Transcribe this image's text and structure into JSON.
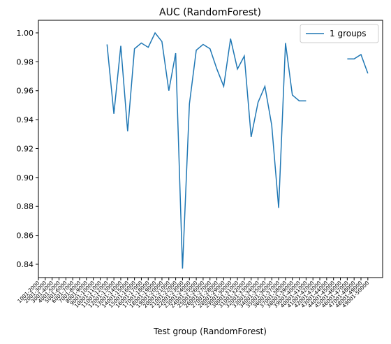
{
  "chart_data": {
    "type": "line",
    "title": "AUC (RandomForest)",
    "x_label": "Test group (RandomForest)",
    "categories": [
      "1001-2000",
      "2001-3000",
      "3001-4000",
      "4001-5000",
      "5001-6000",
      "6001-7000",
      "7001-8000",
      "8001-9000",
      "9001-10000",
      "10001-11000",
      "11001-12000",
      "12001-13000",
      "13001-14000",
      "14001-15000",
      "15001-16000",
      "16001-17000",
      "17001-18000",
      "18001-19000",
      "19001-20000",
      "20001-21000",
      "21001-22000",
      "22001-23000",
      "23001-24000",
      "24001-25000",
      "25001-26000",
      "26001-27000",
      "27001-28000",
      "28001-29000",
      "29001-30000",
      "30001-31000",
      "31001-32000",
      "32001-33000",
      "33001-34000",
      "34001-35000",
      "35001-36000",
      "36001-37000",
      "37001-38000",
      "38001-39000",
      "39001-40000",
      "40001-41000",
      "41001-42000",
      "42001-43000",
      "43001-44000",
      "44001-45000",
      "45001-46000",
      "46001-47000",
      "47001-48000",
      "48001-49000",
      "49001-50000"
    ],
    "series": [
      {
        "name": "1 groups",
        "color": "#1f77b4",
        "values": [
          null,
          null,
          null,
          null,
          null,
          null,
          null,
          null,
          null,
          null,
          0.992,
          0.944,
          0.991,
          0.932,
          0.989,
          0.993,
          0.99,
          1.0,
          0.994,
          0.96,
          0.986,
          0.837,
          0.951,
          0.988,
          0.992,
          0.989,
          0.975,
          0.963,
          0.996,
          0.975,
          0.984,
          0.928,
          0.952,
          0.963,
          0.936,
          0.879,
          0.993,
          0.957,
          0.953,
          0.953,
          null,
          null,
          null,
          null,
          null,
          0.982,
          0.982,
          0.985,
          0.972
        ]
      }
    ],
    "ylim": [
      0.8308,
      1.0087
    ],
    "yticks": [
      0.84,
      0.86,
      0.88,
      {
        "value": 0.9,
        "label": "0.90"
      },
      0.92,
      0.94,
      0.96,
      0.98,
      {
        "value": 1.0,
        "label": "1.00"
      }
    ],
    "legend": "upper right"
  }
}
